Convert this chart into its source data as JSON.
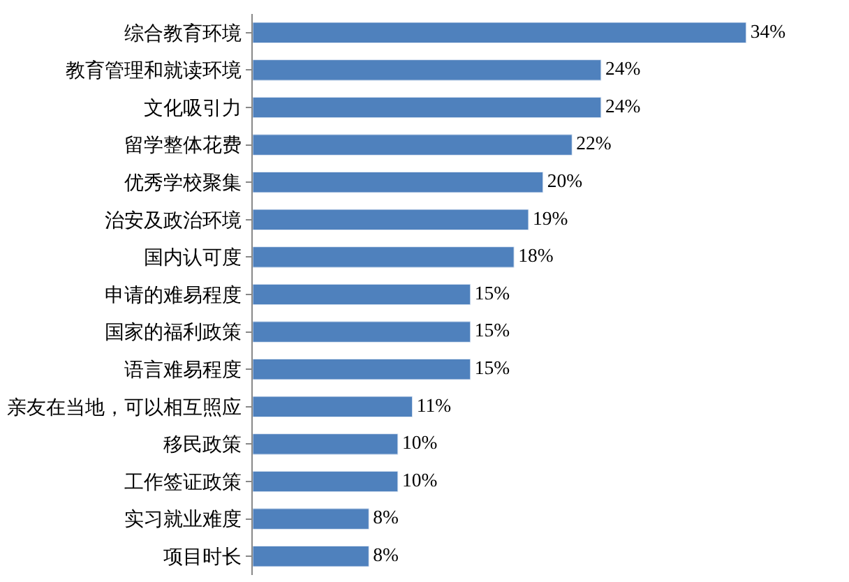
{
  "chart_data": {
    "type": "bar",
    "orientation": "horizontal",
    "categories": [
      "综合教育环境",
      "教育管理和就读环境",
      "文化吸引力",
      "留学整体花费",
      "优秀学校聚集",
      "治安及政治环境",
      "国内认可度",
      "申请的难易程度",
      "国家的福利政策",
      "语言难易程度",
      "亲友在当地，可以相互照应",
      "移民政策",
      "工作签证政策",
      "实习就业难度",
      "项目时长"
    ],
    "values": [
      34,
      24,
      24,
      22,
      20,
      19,
      18,
      15,
      15,
      15,
      11,
      10,
      10,
      8,
      8
    ],
    "value_labels": [
      "34%",
      "24%",
      "24%",
      "22%",
      "20%",
      "19%",
      "18%",
      "15%",
      "15%",
      "15%",
      "11%",
      "10%",
      "10%",
      "8%",
      "8%"
    ],
    "color": "#4f81bd",
    "legend": false
  }
}
